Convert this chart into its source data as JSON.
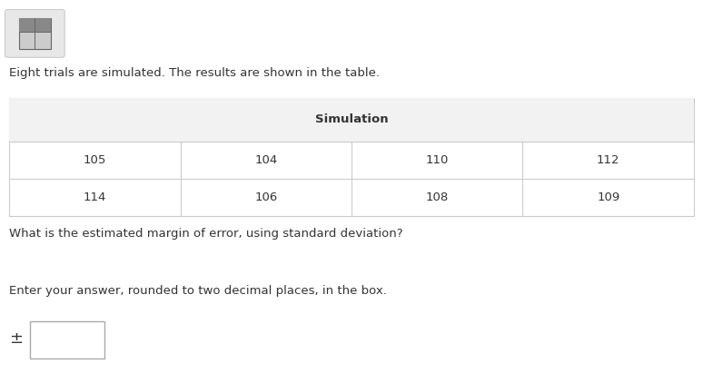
{
  "intro_text": "Eight trials are simulated. The results are shown in the table.",
  "table_header": "Simulation",
  "table_data": [
    [
      105,
      104,
      110,
      112
    ],
    [
      114,
      106,
      108,
      109
    ]
  ],
  "question_text": "What is the estimated margin of error, using standard deviation?",
  "instruction_text": "Enter your answer, rounded to two decimal places, in the box.",
  "pm_symbol": "±",
  "bg_color": "#ffffff",
  "table_border_color": "#cccccc",
  "table_header_bg": "#f2f2f2",
  "text_color": "#333333",
  "icon_bg": "#e8e8e8",
  "input_box_color": "#ffffff",
  "input_box_border": "#aaaaaa"
}
